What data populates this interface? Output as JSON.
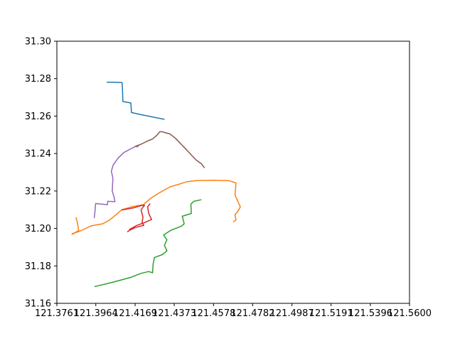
{
  "chart_data": {
    "type": "line",
    "title": "",
    "xlabel": "",
    "ylabel": "",
    "xlim": [
      121.3761,
      121.56
    ],
    "ylim": [
      31.16,
      31.3
    ],
    "grid": false,
    "x_ticks": [
      121.3761,
      121.3964,
      121.4169,
      121.4373,
      121.4578,
      121.4782,
      121.4987,
      121.5191,
      121.5396,
      121.56
    ],
    "x_tick_labels": [
      "121.3761",
      "121.3964",
      "121.4169",
      "121.4373",
      "121.4578",
      "121.4782",
      "121.4987",
      "121.5191",
      "121.5396",
      "121.5600"
    ],
    "y_ticks": [
      31.16,
      31.18,
      31.2,
      31.22,
      31.24,
      31.26,
      31.28,
      31.3
    ],
    "y_tick_labels": [
      "31.16",
      "31.18",
      "31.20",
      "31.22",
      "31.24",
      "31.26",
      "31.28",
      "31.30"
    ],
    "series": [
      {
        "color": "#1f77b4",
        "points": [
          [
            121.4023,
            31.2781
          ],
          [
            121.406,
            31.2781
          ],
          [
            121.4101,
            31.2779
          ],
          [
            121.4103,
            31.2752
          ],
          [
            121.4105,
            31.2678
          ],
          [
            121.4147,
            31.267
          ],
          [
            121.415,
            31.2619
          ],
          [
            121.4195,
            31.2609
          ],
          [
            121.432,
            31.2583
          ]
        ]
      },
      {
        "color": "#ff7f0e",
        "points": [
          [
            121.384,
            31.1972
          ],
          [
            121.388,
            31.1985
          ],
          [
            121.394,
            31.2014
          ],
          [
            121.4,
            31.2025
          ],
          [
            121.4036,
            31.2045
          ],
          [
            121.41,
            31.21
          ],
          [
            121.4152,
            31.2116
          ],
          [
            121.4212,
            31.2127
          ],
          [
            121.4253,
            31.2163
          ],
          [
            121.4295,
            31.219
          ],
          [
            121.435,
            31.2222
          ],
          [
            121.441,
            31.224
          ],
          [
            121.444,
            31.225
          ],
          [
            121.4492,
            31.2256
          ],
          [
            121.458,
            31.2257
          ],
          [
            121.466,
            31.2255
          ],
          [
            121.4695,
            31.2243
          ],
          [
            121.469,
            31.2178
          ],
          [
            121.4707,
            31.214
          ],
          [
            121.4718,
            31.2115
          ],
          [
            121.47,
            31.2085
          ],
          [
            121.469,
            31.2075
          ],
          [
            121.4695,
            31.2045
          ],
          [
            121.4682,
            31.2036
          ]
        ]
      },
      {
        "color": "#ff7f0e",
        "points": [
          [
            121.3843,
            31.1969
          ],
          [
            121.3875,
            31.199
          ],
          [
            121.3868,
            31.203
          ],
          [
            121.3861,
            31.2058
          ]
        ]
      },
      {
        "color": "#2ca02c",
        "points": [
          [
            121.3959,
            31.169
          ],
          [
            121.405,
            31.1712
          ],
          [
            121.415,
            31.174
          ],
          [
            121.42,
            31.176
          ],
          [
            121.424,
            31.177
          ],
          [
            121.426,
            31.1763
          ],
          [
            121.4263,
            31.181
          ],
          [
            121.427,
            31.1845
          ],
          [
            121.431,
            31.186
          ],
          [
            121.4335,
            31.188
          ],
          [
            121.4322,
            31.191
          ],
          [
            121.4335,
            31.194
          ],
          [
            121.4318,
            31.1965
          ],
          [
            121.4355,
            31.199
          ],
          [
            121.441,
            31.2012
          ],
          [
            121.4425,
            31.2025
          ],
          [
            121.4415,
            31.2065
          ],
          [
            121.4462,
            31.208
          ],
          [
            121.446,
            31.213
          ],
          [
            121.4475,
            31.2145
          ],
          [
            121.4513,
            31.2153
          ]
        ]
      },
      {
        "color": "#d62728",
        "points": [
          [
            121.41,
            31.2099
          ],
          [
            121.416,
            31.211
          ],
          [
            121.42,
            31.2122
          ],
          [
            121.4218,
            31.2124
          ],
          [
            121.42,
            31.21
          ],
          [
            121.421,
            31.206
          ],
          [
            121.4205,
            31.203
          ],
          [
            121.4215,
            31.2017
          ],
          [
            121.417,
            31.2005
          ],
          [
            121.414,
            31.199
          ],
          [
            121.413,
            31.1983
          ]
        ]
      },
      {
        "color": "#d62728",
        "points": [
          [
            121.4246,
            31.2131
          ],
          [
            121.4234,
            31.2115
          ],
          [
            121.424,
            31.208
          ],
          [
            121.4255,
            31.2048
          ],
          [
            121.4215,
            31.203
          ],
          [
            121.4175,
            31.2015
          ],
          [
            121.414,
            31.1995
          ]
        ]
      },
      {
        "color": "#9467bd",
        "points": [
          [
            121.3956,
            31.2058
          ],
          [
            121.396,
            31.2095
          ],
          [
            121.3963,
            31.2133
          ],
          [
            121.4025,
            31.2127
          ],
          [
            121.4026,
            31.2145
          ],
          [
            121.4064,
            31.2143
          ],
          [
            121.406,
            31.2165
          ],
          [
            121.405,
            31.22
          ],
          [
            121.4053,
            31.227
          ],
          [
            121.4045,
            31.2305
          ],
          [
            121.4055,
            31.234
          ],
          [
            121.408,
            31.2375
          ],
          [
            121.411,
            31.2405
          ],
          [
            121.415,
            31.2427
          ],
          [
            121.4165,
            31.2435
          ],
          [
            121.4188,
            31.2444
          ],
          [
            121.418,
            31.2435
          ]
        ]
      },
      {
        "color": "#8c564b",
        "points": [
          [
            121.417,
            31.2438
          ],
          [
            121.42,
            31.245
          ],
          [
            121.423,
            31.2465
          ],
          [
            121.426,
            31.2478
          ],
          [
            121.428,
            31.2495
          ],
          [
            121.4298,
            31.2517
          ],
          [
            121.4315,
            31.2515
          ],
          [
            121.433,
            31.251
          ],
          [
            121.435,
            31.2505
          ],
          [
            121.4378,
            31.2483
          ],
          [
            121.44,
            31.246
          ],
          [
            121.443,
            31.2428
          ],
          [
            121.446,
            31.2395
          ],
          [
            121.4488,
            31.2365
          ],
          [
            121.4515,
            31.2345
          ],
          [
            121.453,
            31.2325
          ]
        ]
      }
    ]
  }
}
